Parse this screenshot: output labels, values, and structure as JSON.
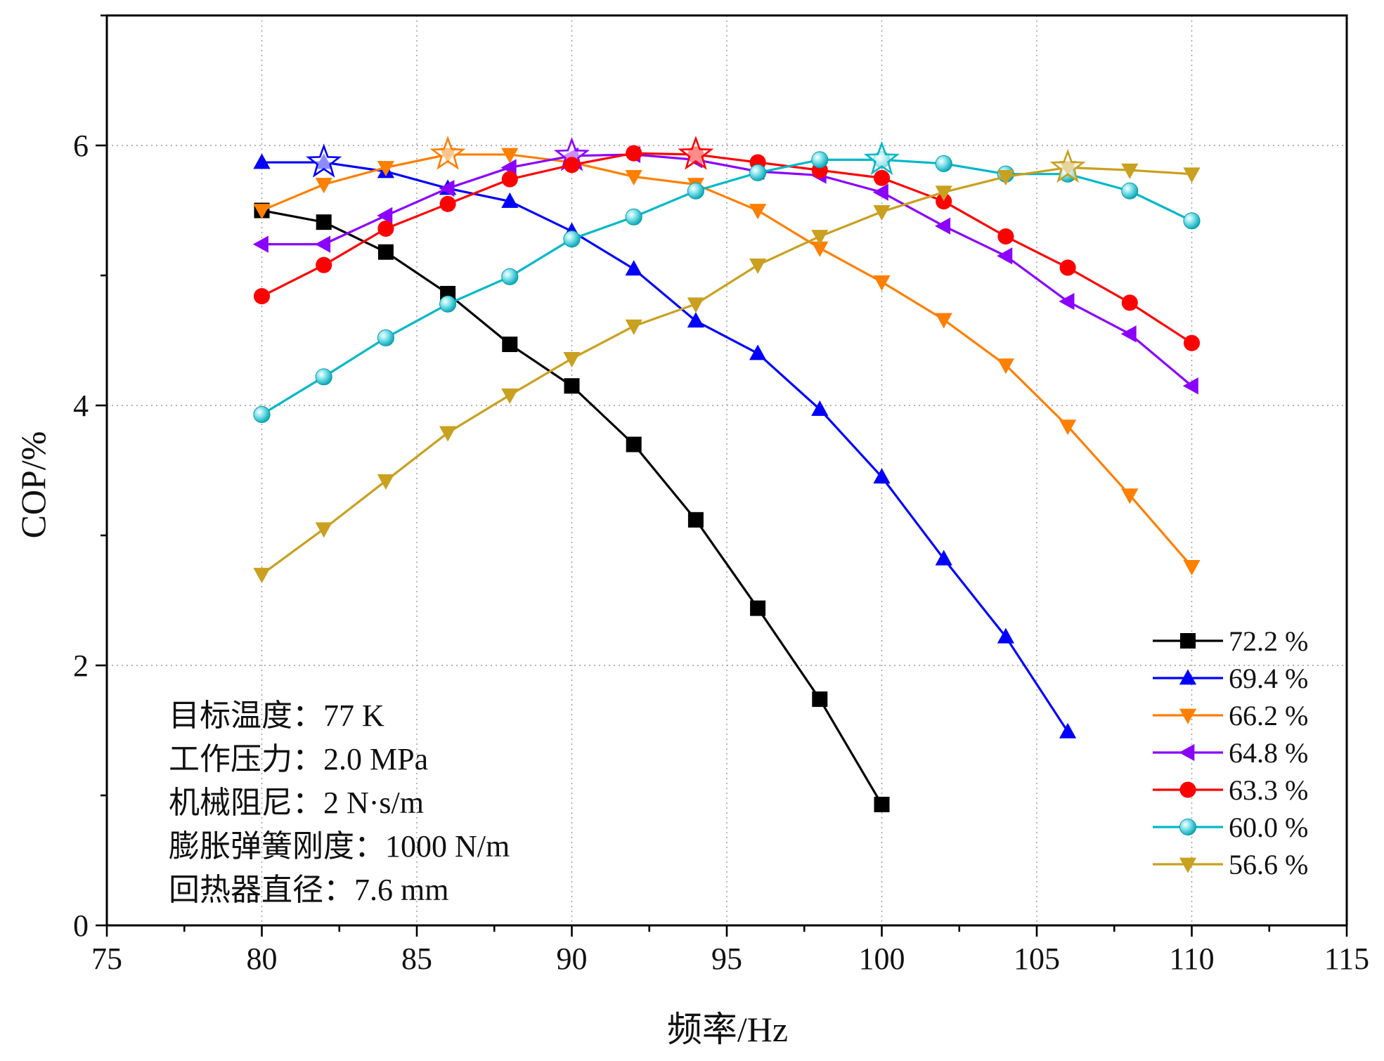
{
  "chart_data": {
    "type": "line",
    "title": "",
    "xlabel": "频率/Hz",
    "ylabel": "COP/%",
    "xlim": [
      75,
      115
    ],
    "ylim": [
      0,
      7
    ],
    "xticks": [
      75,
      80,
      85,
      90,
      95,
      100,
      105,
      110,
      115
    ],
    "yticks": [
      0,
      2,
      4,
      6
    ],
    "grid": true,
    "legend_position": "bottom-right",
    "series": [
      {
        "name": "72.2 %",
        "color": "#000000",
        "marker": "square",
        "x": [
          80,
          82,
          84,
          86,
          88,
          90,
          92,
          94,
          96,
          98,
          100
        ],
        "y": [
          5.5,
          5.41,
          5.18,
          4.86,
          4.47,
          4.15,
          3.7,
          3.12,
          2.44,
          1.74,
          0.93
        ],
        "optimum_x": null
      },
      {
        "name": "69.4 %",
        "color": "#0000ff",
        "marker": "triangle-up",
        "x": [
          80,
          82,
          84,
          86,
          88,
          90,
          92,
          94,
          96,
          98,
          100,
          102,
          104,
          106
        ],
        "y": [
          5.87,
          5.87,
          5.8,
          5.67,
          5.57,
          5.34,
          5.05,
          4.65,
          4.4,
          3.97,
          3.45,
          2.82,
          2.22,
          1.49
        ],
        "optimum_x": 82
      },
      {
        "name": "66.2 %",
        "color": "#ff7f00",
        "marker": "triangle-down",
        "x": [
          80,
          82,
          84,
          86,
          88,
          90,
          92,
          94,
          96,
          98,
          100,
          102,
          104,
          106,
          108,
          110
        ],
        "y": [
          5.5,
          5.7,
          5.83,
          5.93,
          5.93,
          5.87,
          5.76,
          5.7,
          5.5,
          5.21,
          4.95,
          4.66,
          4.31,
          3.84,
          3.31,
          2.76
        ],
        "optimum_x": 86
      },
      {
        "name": "64.8 %",
        "color": "#8b00ff",
        "marker": "triangle-left",
        "x": [
          80,
          82,
          84,
          86,
          88,
          90,
          92,
          94,
          96,
          98,
          100,
          102,
          104,
          106,
          108,
          110
        ],
        "y": [
          5.24,
          5.24,
          5.46,
          5.67,
          5.83,
          5.92,
          5.93,
          5.89,
          5.8,
          5.77,
          5.64,
          5.38,
          5.15,
          4.8,
          4.55,
          4.15
        ],
        "optimum_x": 90
      },
      {
        "name": "63.3 %",
        "color": "#ff0000",
        "marker": "circle",
        "x": [
          80,
          82,
          84,
          86,
          88,
          90,
          92,
          94,
          96,
          98,
          100,
          102,
          104,
          106,
          108,
          110
        ],
        "y": [
          4.84,
          5.08,
          5.36,
          5.55,
          5.74,
          5.85,
          5.94,
          5.93,
          5.87,
          5.81,
          5.75,
          5.57,
          5.3,
          5.06,
          4.79,
          4.48
        ],
        "optimum_x": 94
      },
      {
        "name": "60.0 %",
        "color": "#00b8c8",
        "marker": "circle-shaded",
        "x": [
          80,
          82,
          84,
          86,
          88,
          90,
          92,
          94,
          96,
          98,
          100,
          102,
          104,
          106,
          108,
          110
        ],
        "y": [
          3.93,
          4.22,
          4.52,
          4.78,
          4.99,
          5.28,
          5.45,
          5.65,
          5.79,
          5.89,
          5.89,
          5.86,
          5.78,
          5.78,
          5.65,
          5.42
        ],
        "optimum_x": 100
      },
      {
        "name": "56.6 %",
        "color": "#c9a01f",
        "marker": "triangle-down",
        "x": [
          80,
          82,
          84,
          86,
          88,
          90,
          92,
          94,
          96,
          98,
          100,
          102,
          104,
          106,
          108,
          110
        ],
        "y": [
          2.7,
          3.05,
          3.42,
          3.79,
          4.08,
          4.36,
          4.61,
          4.78,
          5.08,
          5.3,
          5.49,
          5.64,
          5.76,
          5.83,
          5.81,
          5.78
        ],
        "optimum_x": 106
      }
    ],
    "annotations": [
      "目标温度：77 K",
      "工作压力：2.0 MPa",
      "机械阻尼：2 N·s/m",
      "膨胀弹簧刚度：1000 N/m",
      "回热器直径：7.6 mm"
    ]
  }
}
